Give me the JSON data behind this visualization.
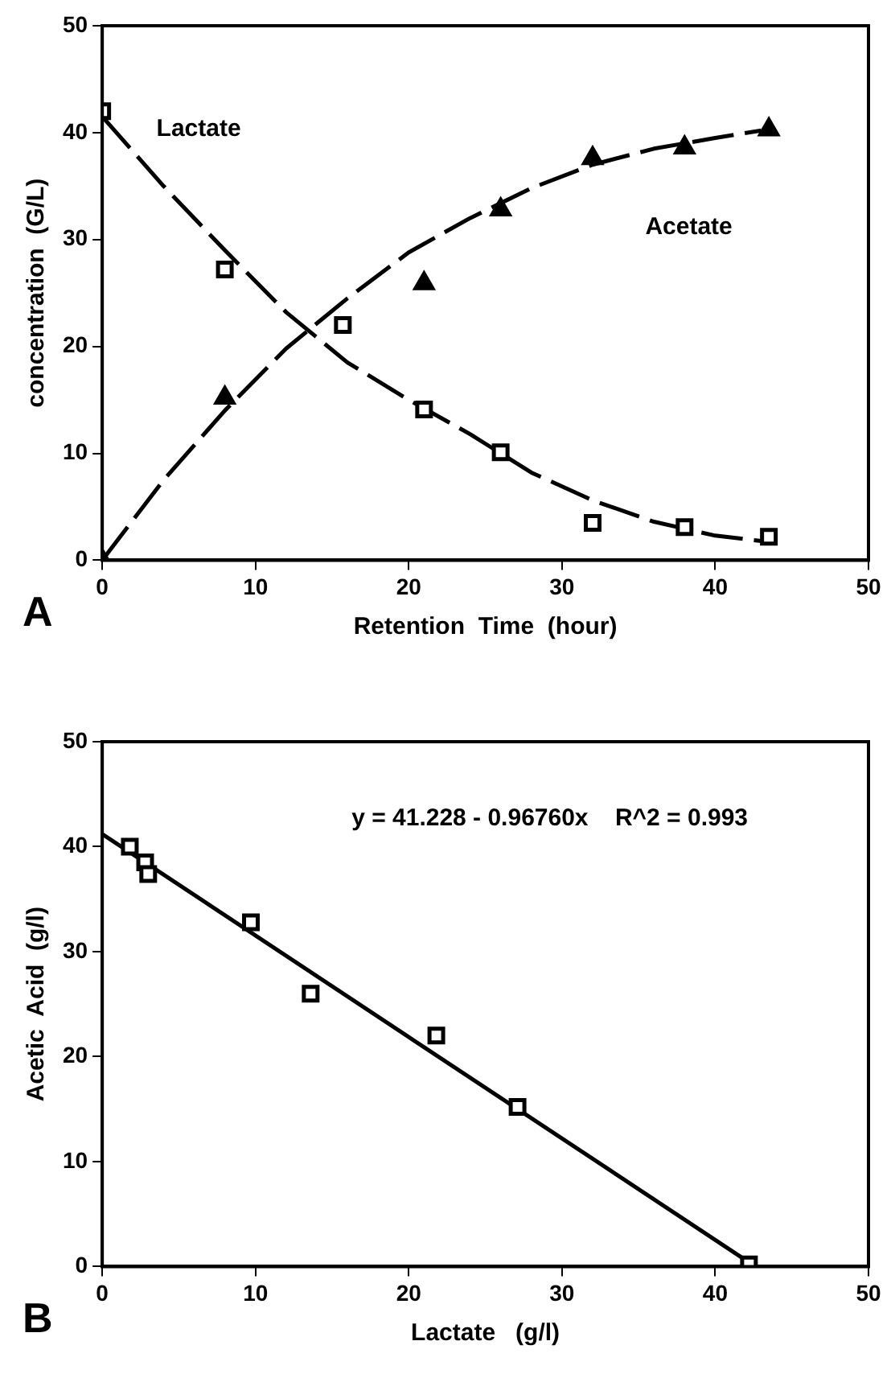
{
  "chart_data": [
    {
      "type": "scatter",
      "title": "A",
      "xlabel": "Retention  Time  (hour)",
      "ylabel": "concentration  (G/L)",
      "xlim": [
        0,
        50
      ],
      "ylim": [
        0,
        50
      ],
      "xticks": [
        0,
        10,
        20,
        30,
        40,
        50
      ],
      "yticks": [
        0,
        10,
        20,
        30,
        40,
        50
      ],
      "grid": false,
      "legend": false,
      "series": [
        {
          "type": "scatter",
          "marker": "square",
          "color": "#000000",
          "x": [
            0,
            8,
            15.7,
            21,
            26,
            32,
            38,
            43.5
          ],
          "values": [
            42,
            27.2,
            22,
            14.1,
            10.1,
            3.5,
            3.1,
            2.2
          ]
        },
        {
          "type": "scatter",
          "marker": "triangle",
          "color": "#000000",
          "x": [
            0,
            8,
            21,
            26,
            32,
            38,
            43.5
          ],
          "values": [
            0,
            15.2,
            25.9,
            32.8,
            37.6,
            38.6,
            40.3
          ]
        },
        {
          "type": "line",
          "name": "Lactate",
          "marker": "none",
          "line_style": "dashed",
          "color": "#000000",
          "x": [
            0,
            4,
            8,
            12,
            16,
            20,
            24,
            28,
            32,
            36,
            40,
            43
          ],
          "values": [
            41.5,
            35,
            29,
            23.2,
            18.5,
            15,
            11.8,
            8.2,
            5.6,
            3.6,
            2.3,
            1.8
          ]
        },
        {
          "type": "line",
          "name": "Acetate",
          "marker": "none",
          "line_style": "dashed",
          "color": "#000000",
          "x": [
            0,
            4,
            8,
            12,
            16,
            20,
            24,
            28,
            32,
            36,
            40,
            43
          ],
          "values": [
            0,
            7.5,
            14,
            19.8,
            24.5,
            28.8,
            32,
            34.8,
            37,
            38.5,
            39.5,
            40.2
          ]
        }
      ]
    },
    {
      "type": "scatter",
      "title": "B",
      "xlabel": "Lactate   (g/l)",
      "ylabel": "Acetic  Acid  (g/l)",
      "xlim": [
        0,
        50
      ],
      "ylim": [
        0,
        50
      ],
      "xticks": [
        0,
        10,
        20,
        30,
        40,
        50
      ],
      "yticks": [
        0,
        10,
        20,
        30,
        40,
        50
      ],
      "grid": false,
      "legend": false,
      "series": [
        {
          "type": "scatter",
          "marker": "square",
          "color": "#000000",
          "x": [
            1.8,
            2.8,
            3.0,
            9.7,
            13.6,
            21.8,
            27.1,
            42.2
          ],
          "values": [
            40,
            38.5,
            37.4,
            32.8,
            26,
            22,
            15.2,
            0.2
          ]
        },
        {
          "type": "line",
          "marker": "none",
          "line_style": "solid",
          "color": "#000000",
          "x": [
            0,
            42
          ],
          "values": [
            41.2,
            0.6
          ]
        }
      ],
      "annotations": [
        "y = 41.228 - 0.96760x    R^2 = 0.993"
      ]
    }
  ]
}
